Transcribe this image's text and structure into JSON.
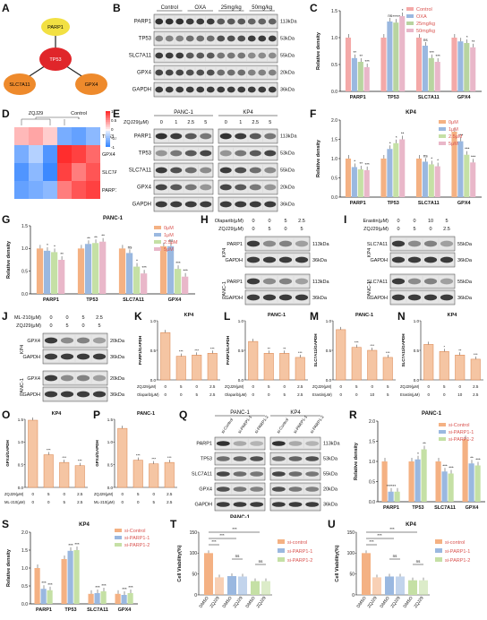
{
  "panels": {
    "A": "A",
    "B": "B",
    "C": "C",
    "D": "D",
    "E": "E",
    "F": "F",
    "G": "G",
    "H": "H",
    "I": "I",
    "J": "J",
    "K": "K",
    "L": "L",
    "M": "M",
    "N": "N",
    "O": "O",
    "P": "P",
    "Q": "Q",
    "R": "R",
    "S": "S",
    "T": "T",
    "U": "U"
  },
  "network": {
    "center": "TP53",
    "top": "PARP1",
    "left": "SLC7A11",
    "right": "GPX4"
  },
  "blotB": {
    "headers": [
      "Control",
      "OXA",
      "25mg/kg",
      "50mg/kg"
    ],
    "rows": [
      "PARP1",
      "TP53",
      "SLC7A11",
      "GPX4",
      "GAPDH"
    ],
    "sizes": [
      "113kDa",
      "53kDa",
      "55kDa",
      "20kDa",
      "36kDa"
    ]
  },
  "chartC": {
    "ylabel": "Relative density",
    "legend": [
      "Control",
      "OXA",
      "25mg/kg",
      "50mg/kg"
    ],
    "colors": [
      "#f4a9a8",
      "#9ab8e0",
      "#b8d4a0",
      "#e9b7c9"
    ],
    "cats": [
      "PARP1",
      "TP53",
      "SLC7A11",
      "GPX4"
    ],
    "ticks": [
      "0.0",
      "0.5",
      "1.0",
      "1.5"
    ],
    "ylim": [
      0,
      1.5
    ],
    "series": [
      [
        1.0,
        1.0,
        1.0,
        1.0
      ],
      [
        0.62,
        1.3,
        0.85,
        0.93
      ],
      [
        0.55,
        1.28,
        0.62,
        0.9
      ],
      [
        0.45,
        1.4,
        0.55,
        0.82
      ]
    ],
    "sig": [
      [
        "**",
        "**",
        "***"
      ],
      [
        "ns",
        "*****",
        "*"
      ],
      [
        "ns",
        "***",
        "***"
      ],
      [
        "",
        "*",
        "**"
      ]
    ]
  },
  "heatmapD": {
    "cols": [
      "ZQJ29",
      "Control"
    ],
    "rows": [
      "TP53",
      "GPX4",
      "SLC7A11",
      "PARP1"
    ],
    "legend": [
      "1",
      "0.5",
      "0",
      "-0.5",
      "-1"
    ]
  },
  "blotE": {
    "title": "ZQJ29(μM)",
    "groups": [
      "PANC-1",
      "KP4"
    ],
    "doses": [
      "0",
      "1",
      "2.5",
      "5",
      "0",
      "1",
      "2.5",
      "5"
    ],
    "rows": [
      "PARP1",
      "TP53",
      "SLC7A11",
      "GPX4",
      "GAPDH"
    ],
    "sizes": [
      "113kDa",
      "53kDa",
      "55kDa",
      "20kDa",
      "36kDa"
    ]
  },
  "chartF": {
    "title": "KP4",
    "ylabel": "Relative density",
    "legend": [
      "0μM",
      "1μM",
      "2.5μM",
      "5μM"
    ],
    "colors": [
      "#f4b183",
      "#9ab8e0",
      "#c5e0a5",
      "#e9b7c9"
    ],
    "cats": [
      "PARP1",
      "TP53",
      "SLC7A11",
      "GPX4"
    ],
    "ticks": [
      "0.0",
      "0.5",
      "1.0",
      "1.5",
      "2.0"
    ],
    "ylim": [
      0,
      2.0
    ],
    "series": [
      [
        1.0,
        1.0,
        1.0,
        1.7
      ],
      [
        0.78,
        1.25,
        0.92,
        1.45
      ],
      [
        0.72,
        1.4,
        0.85,
        1.1
      ],
      [
        0.7,
        1.5,
        0.8,
        0.9
      ]
    ],
    "sig": [
      [
        "*",
        "**",
        "***"
      ],
      [
        "*",
        "*",
        "**"
      ],
      [
        "ns",
        "*",
        "*"
      ],
      [
        "***",
        "***",
        "***"
      ]
    ]
  },
  "chartG": {
    "title": "PANC-1",
    "ylabel": "Relative density",
    "legend": [
      "0μM",
      "1μM",
      "2.5μM",
      "5μM"
    ],
    "colors": [
      "#f4b183",
      "#9ab8e0",
      "#c5e0a5",
      "#e9b7c9"
    ],
    "cats": [
      "PARP1",
      "TP53",
      "SLC7A11",
      "GPX4"
    ],
    "ticks": [
      "0.0",
      "0.5",
      "1.0",
      "1.5"
    ],
    "ylim": [
      0,
      1.5
    ],
    "series": [
      [
        1.0,
        1.0,
        1.0,
        1.05
      ],
      [
        0.95,
        1.1,
        0.9,
        1.05
      ],
      [
        0.92,
        1.12,
        0.6,
        0.55
      ],
      [
        0.75,
        1.15,
        0.45,
        0.38
      ]
    ],
    "sig": [
      [
        "*",
        "*",
        "**"
      ],
      [
        "**",
        "**",
        "**"
      ],
      [
        "ns",
        "*",
        "***"
      ],
      [
        "ns",
        "***",
        "***"
      ]
    ]
  },
  "blotH": {
    "rowsTop": "Olaparib(μM)",
    "rowsBot": "ZQJ29(μM)",
    "olaparib": [
      "0",
      "0",
      "5",
      "2.5"
    ],
    "zqj": [
      "0",
      "5",
      "0",
      "5"
    ],
    "cells": [
      "KP4",
      "PANC-1"
    ],
    "bands": [
      "PARP1",
      "GAPDH"
    ],
    "sizes": [
      "113kDa",
      "36kDa"
    ]
  },
  "blotI": {
    "rowsTop": "Erastin(μM)",
    "rowsBot": "ZQJ29(μM)",
    "erastin": [
      "0",
      "0",
      "10",
      "5"
    ],
    "zqj": [
      "0",
      "5",
      "0",
      "2.5"
    ],
    "cells": [
      "KP4",
      "PANC-1"
    ],
    "bands": [
      "SLC7A11",
      "GAPDH"
    ],
    "sizes": [
      "55kDa",
      "36kDa"
    ]
  },
  "blotJ": {
    "rowsTop": "ML-210(μM)",
    "rowsBot": "ZQJ29(μM)",
    "ml": [
      "0",
      "0",
      "5",
      "2.5"
    ],
    "zqj": [
      "0",
      "5",
      "0",
      "5"
    ],
    "cells": [
      "KP4",
      "PANC-1"
    ],
    "bands": [
      "GPX4",
      "GAPDH"
    ],
    "sizes": [
      "20kDa",
      "36kDa"
    ]
  },
  "smallCharts": [
    {
      "id": "K",
      "title": "KP4",
      "ylabel": "PARP1/GAPDH",
      "ticks": [
        "0.0",
        "0.5",
        "1.0"
      ],
      "ymax": 1.0,
      "values": [
        0.8,
        0.4,
        0.42,
        0.45
      ],
      "sig": [
        "***",
        "***",
        "***"
      ],
      "row1": "ZQJ29(μM)",
      "row2": "Olaparib(μM)",
      "r1": [
        "0",
        "5",
        "0",
        "2.5"
      ],
      "r2": [
        "0",
        "0",
        "5",
        "2.5"
      ]
    },
    {
      "id": "L",
      "title": "PANC-1",
      "ylabel": "PARP1/GAPDH",
      "ticks": [
        "0.0",
        "0.5",
        "1.0"
      ],
      "ymax": 1.0,
      "values": [
        0.65,
        0.45,
        0.45,
        0.38
      ],
      "sig": [
        "**",
        "**",
        "***"
      ],
      "row1": "ZQJ29(μM)",
      "row2": "Olaparib(μM)",
      "r1": [
        "0",
        "5",
        "0",
        "2.5"
      ],
      "r2": [
        "0",
        "0",
        "5",
        "2.5"
      ]
    },
    {
      "id": "M",
      "title": "PANC-1",
      "ylabel": "SLC7A11/GAPDH",
      "ticks": [
        "0.0",
        "0.5",
        "1.0"
      ],
      "ymax": 1.0,
      "values": [
        0.85,
        0.55,
        0.5,
        0.38
      ],
      "sig": [
        "***",
        "***",
        "***"
      ],
      "row1": "ZQJ29(μM)",
      "row2": "Erastin(μM)",
      "r1": [
        "0",
        "5",
        "0",
        "5"
      ],
      "r2": [
        "0",
        "0",
        "10",
        "5"
      ]
    },
    {
      "id": "N",
      "title": "KP4",
      "ylabel": "SLC7A11/GAPDH",
      "ticks": [
        "0.0",
        "0.5",
        "1.0"
      ],
      "ymax": 1.0,
      "values": [
        0.6,
        0.48,
        0.42,
        0.35
      ],
      "sig": [
        "*",
        "**",
        "***"
      ],
      "row1": "ZQJ29(μM)",
      "row2": "Erastin(μM)",
      "r1": [
        "0",
        "5",
        "0",
        "2.5"
      ],
      "r2": [
        "0",
        "0",
        "10",
        "2.5"
      ]
    },
    {
      "id": "O",
      "title": "KP4",
      "ylabel": "GPX4/GAPDH",
      "ticks": [
        "0.0",
        "0.5",
        "1.0",
        "1.5"
      ],
      "ymax": 1.5,
      "values": [
        1.48,
        0.72,
        0.55,
        0.48
      ],
      "sig": [
        "***",
        "***",
        "***"
      ],
      "row1": "ZQJ29(μM)",
      "row2": "ML-210(μM)",
      "r1": [
        "0",
        "5",
        "0",
        "2.5"
      ],
      "r2": [
        "0",
        "0",
        "5",
        "2.5"
      ]
    },
    {
      "id": "P",
      "title": "PANC-1",
      "ylabel": "GPX4/GAPDH",
      "ticks": [
        "0.0",
        "0.5",
        "1.0",
        "1.5"
      ],
      "ymax": 1.5,
      "values": [
        1.3,
        0.6,
        0.52,
        0.55
      ],
      "sig": [
        "***",
        "***",
        "***"
      ],
      "row1": "ZQJ29(μM)",
      "row2": "ML-210(μM)",
      "r1": [
        "0",
        "5",
        "0",
        "2.5"
      ],
      "r2": [
        "0",
        "0",
        "5",
        "2.5"
      ]
    }
  ],
  "blotQ": {
    "groups": [
      "PANC-1",
      "KP4"
    ],
    "lanes": [
      "si-Control",
      "si-PARP1-1",
      "si-PARP1-2",
      "si-Control",
      "si-PARP1-1",
      "si-PARP1-2"
    ],
    "rows": [
      "PARP1",
      "TP53",
      "SLC7A11",
      "GPX4",
      "GAPDH"
    ],
    "sizes": [
      "113kDa",
      "53kDa",
      "55kDa",
      "20kDa",
      "36kDa"
    ],
    "footer": "PANC-1"
  },
  "chartR": {
    "title": "PANC-1",
    "ylabel": "Relative density",
    "legend": [
      "si-Control",
      "si-PARP1-1",
      "si-PARP1-2"
    ],
    "colors": [
      "#f4b183",
      "#9ab8e0",
      "#c5e0a5"
    ],
    "cats": [
      "PARP1",
      "TP53",
      "SLC7A11",
      "GPX4"
    ],
    "ticks": [
      "0.0",
      "0.5",
      "1.0",
      "1.5",
      "2.0"
    ],
    "ylim": [
      0,
      2.0
    ],
    "series": [
      [
        1.0,
        1.0,
        1.0,
        1.55
      ],
      [
        0.25,
        1.05,
        0.75,
        0.95
      ],
      [
        0.25,
        1.3,
        0.7,
        0.9
      ]
    ],
    "sig": [
      [
        "******",
        ""
      ],
      [
        "*",
        "**"
      ],
      [
        "***",
        "***"
      ],
      [
        "**",
        "***"
      ]
    ]
  },
  "chartS": {
    "title": "KP4",
    "ylabel": "Relative density",
    "legend": [
      "si-Control",
      "si-PARP1-1",
      "si-PARP1-2"
    ],
    "colors": [
      "#f4b183",
      "#9ab8e0",
      "#c5e0a5"
    ],
    "cats": [
      "PARP1",
      "TP53",
      "SLC7A11",
      "GPX4"
    ],
    "ticks": [
      "0.0",
      "0.5",
      "1.0",
      "1.5",
      "2.0"
    ],
    "ylim": [
      0,
      2.0
    ],
    "series": [
      [
        1.0,
        1.25,
        0.28,
        0.28
      ],
      [
        0.42,
        1.48,
        0.3,
        0.25
      ],
      [
        0.38,
        1.5,
        0.35,
        0.3
      ]
    ],
    "sig": [
      [
        "***",
        "***"
      ],
      [
        "***",
        "***"
      ],
      [
        "***",
        "***"
      ],
      [
        "***",
        "***"
      ]
    ]
  },
  "chartT": {
    "title": "",
    "ylabel": "Cell Viability(%)",
    "legend": [
      "si-control",
      "si-PARP1-1",
      "si-PARP1-2"
    ],
    "colors": [
      "#f4b183",
      "#9ab8e0",
      "#c5e0a5"
    ],
    "ticks": [
      "0",
      "50",
      "100",
      "150"
    ],
    "ymax": 150,
    "values": [
      100,
      42,
      45,
      44,
      33,
      33
    ],
    "xlabels": [
      "DMSO",
      "ZQJ29",
      "DMSO",
      "ZQJ29",
      "DMSO",
      "ZQJ29"
    ],
    "sig": [
      "***",
      "***",
      "***",
      "ns",
      "ns"
    ]
  },
  "chartU": {
    "title": "KP4",
    "ylabel": "Cell Viability(%)",
    "legend": [
      "si-control",
      "si-PARP1-1",
      "si-PARP1-2"
    ],
    "colors": [
      "#f4b183",
      "#9ab8e0",
      "#c5e0a5"
    ],
    "ticks": [
      "0",
      "50",
      "100",
      "150"
    ],
    "ymax": 150,
    "values": [
      100,
      42,
      44,
      44,
      35,
      35
    ],
    "xlabels": [
      "DMSO",
      "ZQJ29",
      "DMSO",
      "ZQJ29",
      "DMSO",
      "ZQJ29"
    ],
    "sig": [
      "***",
      "***",
      "***",
      "ns",
      "ns"
    ]
  }
}
